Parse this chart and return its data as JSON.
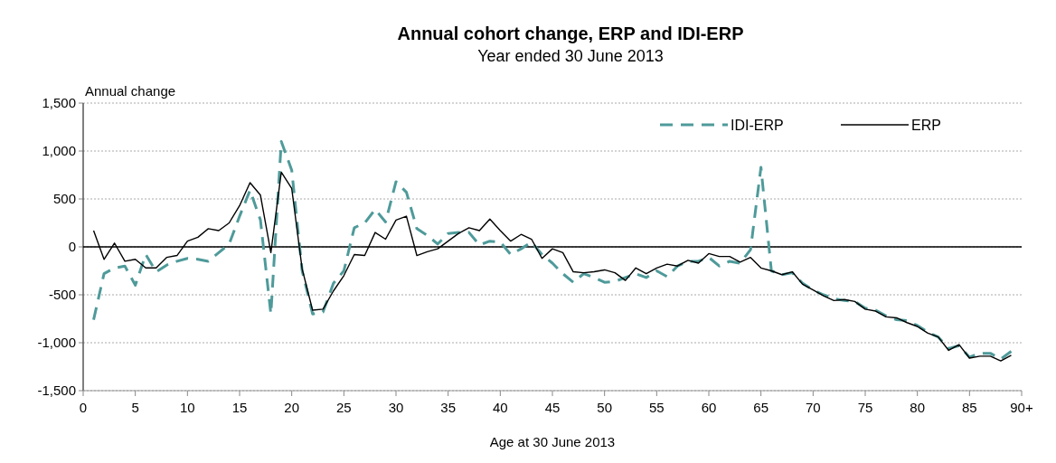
{
  "chart_data": {
    "type": "line",
    "title": "Annual  cohort change, ERP and IDI-ERP",
    "subtitle": "Year ended  30 June  2013",
    "xlabel": "Age at 30 June 2013",
    "ylabel": "Annual change",
    "x": [
      1,
      2,
      3,
      4,
      5,
      6,
      7,
      8,
      9,
      10,
      11,
      12,
      13,
      14,
      15,
      16,
      17,
      18,
      19,
      20,
      21,
      22,
      23,
      24,
      25,
      26,
      27,
      28,
      29,
      30,
      31,
      32,
      33,
      34,
      35,
      36,
      37,
      38,
      39,
      40,
      41,
      42,
      43,
      44,
      45,
      46,
      47,
      48,
      49,
      50,
      51,
      52,
      53,
      54,
      55,
      56,
      57,
      58,
      59,
      60,
      61,
      62,
      63,
      64,
      65,
      66,
      67,
      68,
      69,
      70,
      71,
      72,
      73,
      74,
      75,
      76,
      77,
      78,
      79,
      80,
      81,
      82,
      83,
      84,
      85,
      86,
      87,
      88,
      89
    ],
    "xlim": [
      0,
      90
    ],
    "xticks": [
      0,
      5,
      10,
      15,
      20,
      25,
      30,
      35,
      40,
      45,
      50,
      55,
      60,
      65,
      70,
      75,
      80,
      85,
      {
        "value": 90,
        "label": "90+"
      }
    ],
    "ylim": [
      -1500,
      1500
    ],
    "yticks": [
      {
        "value": -1500,
        "label": "-1,500"
      },
      {
        "value": -1000,
        "label": "-1,000"
      },
      -500,
      0,
      500,
      {
        "value": 1000,
        "label": "1,000"
      },
      {
        "value": 1500,
        "label": "1,500"
      }
    ],
    "grid": "y",
    "legend": "top right",
    "marker": "none",
    "ref_lines": [
      {
        "axis": "y",
        "value": 0,
        "color": "#000000",
        "line_style": "solid"
      }
    ],
    "series": [
      {
        "name": "IDI-ERP",
        "color": "#4f9a9a",
        "line_style": "dashed",
        "values": [
          -760,
          -280,
          -220,
          -200,
          -400,
          -80,
          -260,
          -190,
          -150,
          -120,
          -130,
          -150,
          -60,
          30,
          320,
          590,
          280,
          -700,
          1100,
          800,
          -250,
          -700,
          -680,
          -380,
          -250,
          200,
          250,
          390,
          260,
          680,
          570,
          190,
          120,
          30,
          140,
          150,
          150,
          20,
          60,
          50,
          -80,
          -20,
          50,
          -80,
          -170,
          -280,
          -370,
          -280,
          -320,
          -370,
          -360,
          -320,
          -280,
          -320,
          -250,
          -310,
          -200,
          -150,
          -150,
          -110,
          -200,
          -150,
          -170,
          -30,
          830,
          -250,
          -290,
          -270,
          -380,
          -450,
          -500,
          -540,
          -560,
          -570,
          -640,
          -660,
          -720,
          -760,
          -770,
          -820,
          -890,
          -940,
          -1060,
          -1030,
          -1150,
          -1110,
          -1110,
          -1170,
          -1090
        ]
      },
      {
        "name": "ERP",
        "color": "#000000",
        "line_style": "solid",
        "values": [
          170,
          -130,
          40,
          -150,
          -130,
          -220,
          -220,
          -110,
          -90,
          60,
          100,
          190,
          170,
          250,
          430,
          670,
          540,
          -60,
          780,
          610,
          -230,
          -660,
          -650,
          -460,
          -300,
          -80,
          -90,
          150,
          80,
          280,
          320,
          -90,
          -50,
          -20,
          60,
          140,
          200,
          170,
          290,
          170,
          60,
          130,
          80,
          -120,
          -20,
          -60,
          -260,
          -270,
          -260,
          -240,
          -270,
          -350,
          -220,
          -280,
          -220,
          -180,
          -200,
          -140,
          -170,
          -70,
          -100,
          -100,
          -160,
          -110,
          -220,
          -250,
          -290,
          -260,
          -390,
          -450,
          -510,
          -560,
          -550,
          -570,
          -650,
          -670,
          -730,
          -740,
          -790,
          -830,
          -900,
          -940,
          -1080,
          -1020,
          -1160,
          -1140,
          -1140,
          -1190,
          -1130
        ]
      }
    ]
  }
}
